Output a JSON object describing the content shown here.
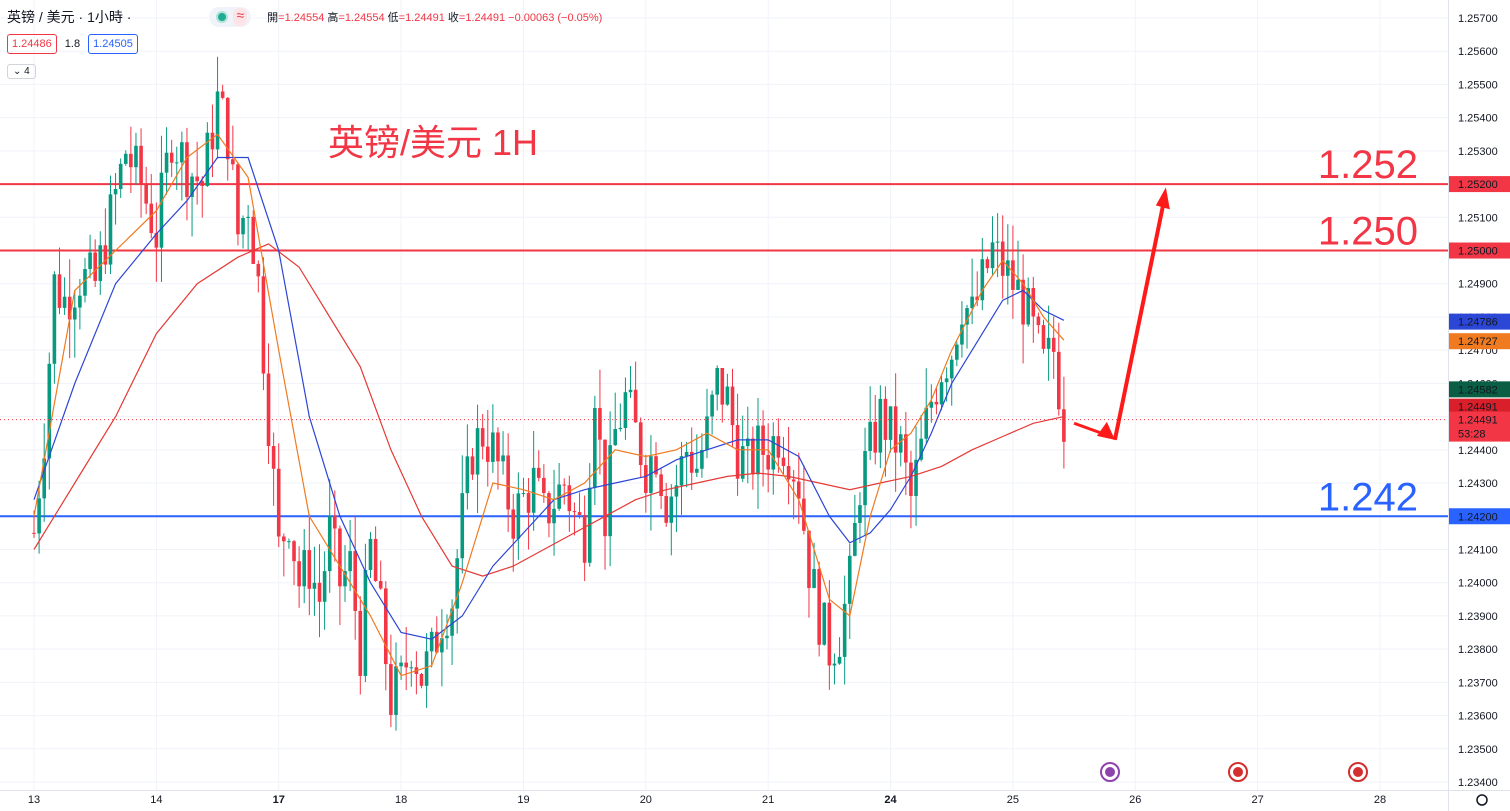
{
  "header": {
    "symbol": "英镑 / 美元 · 1小時 ·",
    "ohlc": {
      "open_key": "開",
      "open": "=1.24554",
      "high_key": "高",
      "high": "=1.24554",
      "low_key": "低",
      "low": "=1.24491",
      "close_key": "收",
      "close": "=1.24491",
      "change": "−0.00063 (−0.05%)"
    },
    "bid": "1.24486",
    "spread": "1.8",
    "ask": "1.24505",
    "indicators_toggle": "4"
  },
  "annotation_title": "英镑/美元 1H",
  "chart_data": {
    "type": "candlestick",
    "title": "英镑/美元 1H",
    "ylim": [
      1.2345,
      1.2575
    ],
    "y_ticks": [
      "1.25700",
      "1.25600",
      "1.25500",
      "1.25400",
      "1.25300",
      "1.25200",
      "1.25100",
      "1.25000",
      "1.24900",
      "1.24800",
      "1.24700",
      "1.24600",
      "1.24500",
      "1.24400",
      "1.24300",
      "1.24200",
      "1.24100",
      "1.24000",
      "1.23900",
      "1.23800",
      "1.23700",
      "1.23600",
      "1.23500",
      "1.23400"
    ],
    "x_labels": [
      {
        "label": "13",
        "hour": 0
      },
      {
        "label": "14",
        "hour": 24
      },
      {
        "label": "17",
        "hour": 48
      },
      {
        "label": "18",
        "hour": 72
      },
      {
        "label": "19",
        "hour": 96
      },
      {
        "label": "20",
        "hour": 120
      },
      {
        "label": "21",
        "hour": 144
      },
      {
        "label": "24",
        "hour": 168
      },
      {
        "label": "25",
        "hour": 192
      },
      {
        "label": "26",
        "hour": 216
      },
      {
        "label": "27",
        "hour": 240
      },
      {
        "label": "28",
        "hour": 264
      }
    ],
    "bold_x_labels": [
      "17",
      "24"
    ],
    "candle_path": [
      [
        0,
        1.2415
      ],
      [
        2,
        1.2445
      ],
      [
        4,
        1.249
      ],
      [
        6,
        1.2485
      ],
      [
        9,
        1.2492
      ],
      [
        12,
        1.249
      ],
      [
        15,
        1.251
      ],
      [
        18,
        1.253
      ],
      [
        21,
        1.252
      ],
      [
        24,
        1.2505
      ],
      [
        27,
        1.2535
      ],
      [
        30,
        1.2525
      ],
      [
        33,
        1.252
      ],
      [
        36,
        1.2545
      ],
      [
        38,
        1.2535
      ],
      [
        40,
        1.2505
      ],
      [
        42,
        1.2515
      ],
      [
        44,
        1.249
      ],
      [
        46,
        1.245
      ],
      [
        48,
        1.241
      ],
      [
        50,
        1.242
      ],
      [
        52,
        1.24
      ],
      [
        54,
        1.2405
      ],
      [
        56,
        1.2395
      ],
      [
        58,
        1.2415
      ],
      [
        60,
        1.24
      ],
      [
        62,
        1.2405
      ],
      [
        64,
        1.238
      ],
      [
        66,
        1.241
      ],
      [
        68,
        1.239
      ],
      [
        70,
        1.2365
      ],
      [
        72,
        1.237
      ],
      [
        74,
        1.2382
      ],
      [
        76,
        1.2372
      ],
      [
        78,
        1.2378
      ],
      [
        80,
        1.239
      ],
      [
        82,
        1.2395
      ],
      [
        84,
        1.242
      ],
      [
        86,
        1.244
      ],
      [
        88,
        1.2445
      ],
      [
        90,
        1.244
      ],
      [
        92,
        1.243
      ],
      [
        94,
        1.242
      ],
      [
        96,
        1.2425
      ],
      [
        98,
        1.243
      ],
      [
        100,
        1.242
      ],
      [
        102,
        1.2425
      ],
      [
        104,
        1.243
      ],
      [
        106,
        1.242
      ],
      [
        108,
        1.2415
      ],
      [
        110,
        1.246
      ],
      [
        112,
        1.242
      ],
      [
        114,
        1.2445
      ],
      [
        116,
        1.2455
      ],
      [
        118,
        1.2445
      ],
      [
        120,
        1.2435
      ],
      [
        122,
        1.244
      ],
      [
        124,
        1.2425
      ],
      [
        126,
        1.243
      ],
      [
        128,
        1.244
      ],
      [
        130,
        1.2435
      ],
      [
        132,
        1.2445
      ],
      [
        134,
        1.246
      ],
      [
        136,
        1.2455
      ],
      [
        138,
        1.244
      ],
      [
        140,
        1.2435
      ],
      [
        142,
        1.244
      ],
      [
        144,
        1.244
      ],
      [
        146,
        1.2445
      ],
      [
        148,
        1.244
      ],
      [
        150,
        1.243
      ],
      [
        152,
        1.2405
      ],
      [
        154,
        1.239
      ],
      [
        156,
        1.238
      ],
      [
        158,
        1.2385
      ],
      [
        160,
        1.24
      ],
      [
        162,
        1.243
      ],
      [
        164,
        1.244
      ],
      [
        166,
        1.245
      ],
      [
        168,
        1.2445
      ],
      [
        170,
        1.244
      ],
      [
        172,
        1.2425
      ],
      [
        174,
        1.244
      ],
      [
        176,
        1.2455
      ],
      [
        178,
        1.2465
      ],
      [
        180,
        1.247
      ],
      [
        182,
        1.2485
      ],
      [
        184,
        1.248
      ],
      [
        186,
        1.249
      ],
      [
        188,
        1.25
      ],
      [
        190,
        1.2495
      ],
      [
        192,
        1.249
      ],
      [
        194,
        1.2485
      ],
      [
        196,
        1.2475
      ],
      [
        198,
        1.2465
      ],
      [
        200,
        1.247
      ],
      [
        202,
        1.2449
      ]
    ],
    "ma_fast_color": "#f07a1f",
    "ma_mid_color": "#2c46d6",
    "ma_slow_color": "#e53935",
    "ma_fast": [
      [
        0,
        1.242
      ],
      [
        8,
        1.2488
      ],
      [
        16,
        1.25
      ],
      [
        24,
        1.2512
      ],
      [
        30,
        1.2528
      ],
      [
        36,
        1.2535
      ],
      [
        42,
        1.2522
      ],
      [
        48,
        1.247
      ],
      [
        54,
        1.242
      ],
      [
        60,
        1.2405
      ],
      [
        66,
        1.239
      ],
      [
        72,
        1.2372
      ],
      [
        78,
        1.2375
      ],
      [
        84,
        1.24
      ],
      [
        90,
        1.243
      ],
      [
        96,
        1.2428
      ],
      [
        102,
        1.2425
      ],
      [
        108,
        1.243
      ],
      [
        114,
        1.244
      ],
      [
        120,
        1.2438
      ],
      [
        126,
        1.244
      ],
      [
        132,
        1.2445
      ],
      [
        138,
        1.244
      ],
      [
        144,
        1.244
      ],
      [
        150,
        1.2425
      ],
      [
        156,
        1.2395
      ],
      [
        160,
        1.239
      ],
      [
        164,
        1.242
      ],
      [
        168,
        1.244
      ],
      [
        172,
        1.2445
      ],
      [
        176,
        1.2455
      ],
      [
        180,
        1.247
      ],
      [
        186,
        1.2488
      ],
      [
        190,
        1.2497
      ],
      [
        194,
        1.249
      ],
      [
        198,
        1.248
      ],
      [
        202,
        1.2473
      ]
    ],
    "ma_mid": [
      [
        0,
        1.2425
      ],
      [
        8,
        1.246
      ],
      [
        16,
        1.249
      ],
      [
        24,
        1.2505
      ],
      [
        30,
        1.2515
      ],
      [
        36,
        1.2528
      ],
      [
        42,
        1.2528
      ],
      [
        48,
        1.25
      ],
      [
        54,
        1.245
      ],
      [
        60,
        1.242
      ],
      [
        66,
        1.24
      ],
      [
        72,
        1.2385
      ],
      [
        78,
        1.2383
      ],
      [
        84,
        1.239
      ],
      [
        90,
        1.2405
      ],
      [
        96,
        1.2415
      ],
      [
        102,
        1.2425
      ],
      [
        108,
        1.2428
      ],
      [
        114,
        1.243
      ],
      [
        120,
        1.2432
      ],
      [
        126,
        1.2437
      ],
      [
        132,
        1.244
      ],
      [
        138,
        1.2443
      ],
      [
        144,
        1.2443
      ],
      [
        150,
        1.2438
      ],
      [
        156,
        1.242
      ],
      [
        160,
        1.2412
      ],
      [
        164,
        1.2415
      ],
      [
        168,
        1.2422
      ],
      [
        172,
        1.2432
      ],
      [
        176,
        1.2445
      ],
      [
        180,
        1.246
      ],
      [
        186,
        1.2475
      ],
      [
        190,
        1.2485
      ],
      [
        194,
        1.2488
      ],
      [
        198,
        1.2482
      ],
      [
        202,
        1.2479
      ]
    ],
    "ma_slow": [
      [
        0,
        1.241
      ],
      [
        8,
        1.243
      ],
      [
        16,
        1.245
      ],
      [
        24,
        1.2475
      ],
      [
        32,
        1.249
      ],
      [
        40,
        1.2498
      ],
      [
        46,
        1.2502
      ],
      [
        52,
        1.2495
      ],
      [
        58,
        1.248
      ],
      [
        64,
        1.2465
      ],
      [
        70,
        1.244
      ],
      [
        76,
        1.242
      ],
      [
        82,
        1.2405
      ],
      [
        88,
        1.2402
      ],
      [
        94,
        1.2405
      ],
      [
        100,
        1.241
      ],
      [
        106,
        1.2415
      ],
      [
        112,
        1.242
      ],
      [
        118,
        1.2425
      ],
      [
        124,
        1.2428
      ],
      [
        130,
        1.243
      ],
      [
        136,
        1.2432
      ],
      [
        142,
        1.2433
      ],
      [
        148,
        1.2432
      ],
      [
        154,
        1.243
      ],
      [
        160,
        1.2428
      ],
      [
        166,
        1.243
      ],
      [
        172,
        1.2432
      ],
      [
        178,
        1.2435
      ],
      [
        184,
        1.244
      ],
      [
        190,
        1.2444
      ],
      [
        196,
        1.2448
      ],
      [
        202,
        1.245
      ]
    ],
    "levels": [
      {
        "price": 1.252,
        "axis_label": "1.25200",
        "big_label": "1.252",
        "color": "#f23645"
      },
      {
        "price": 1.25,
        "axis_label": "1.25000",
        "big_label": "1.250",
        "color": "#f23645"
      },
      {
        "price": 1.242,
        "axis_label": "1.24200",
        "big_label": "1.242",
        "color": "#2962ff"
      }
    ],
    "price_badges": [
      {
        "price": 1.24786,
        "text": "1.24786",
        "bg": "#2c46d6"
      },
      {
        "price": 1.24727,
        "text": "1.24727",
        "bg": "#f07a1f"
      },
      {
        "price": 1.24582,
        "text": "1.24582",
        "bg": "#0a5e44"
      },
      {
        "price": 1.2453,
        "text": "1.24491",
        "bg": "#d81f2a"
      }
    ],
    "last_price": {
      "price": 1.24491,
      "text": "1.24491",
      "countdown": "53:28",
      "bg": "#f23645"
    },
    "forecast_arrow": [
      [
        204,
        1.2448
      ],
      [
        212,
        1.2443
      ],
      [
        222,
        1.2519
      ]
    ]
  }
}
